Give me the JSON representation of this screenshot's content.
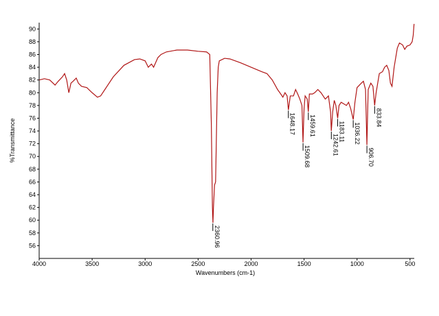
{
  "chart_data": {
    "type": "line",
    "xlabel": "Wavenumbers (cm-1)",
    "ylabel": "%Transmittance",
    "xlim": [
      4000,
      460
    ],
    "ylim": [
      54,
      91
    ],
    "xticks": [
      4000,
      3500,
      3000,
      2500,
      2000,
      1500,
      1000,
      500
    ],
    "yticks": [
      56,
      58,
      60,
      62,
      64,
      66,
      68,
      70,
      72,
      74,
      76,
      78,
      80,
      82,
      84,
      86,
      88,
      90
    ],
    "x": [
      4000,
      3950,
      3900,
      3850,
      3820,
      3780,
      3760,
      3740,
      3720,
      3700,
      3680,
      3650,
      3630,
      3600,
      3550,
      3500,
      3450,
      3420,
      3380,
      3300,
      3200,
      3100,
      3050,
      3000,
      2970,
      2940,
      2920,
      2880,
      2850,
      2800,
      2700,
      2600,
      2500,
      2420,
      2390,
      2375,
      2365,
      2360,
      2355,
      2345,
      2335,
      2320,
      2310,
      2300,
      2250,
      2200,
      2100,
      2000,
      1900,
      1850,
      1800,
      1750,
      1720,
      1700,
      1680,
      1660,
      1648,
      1630,
      1600,
      1580,
      1560,
      1540,
      1520,
      1510,
      1500,
      1490,
      1470,
      1460,
      1450,
      1420,
      1400,
      1370,
      1340,
      1300,
      1270,
      1250,
      1243,
      1230,
      1215,
      1200,
      1183,
      1170,
      1150,
      1100,
      1080,
      1060,
      1036,
      1020,
      1000,
      960,
      940,
      920,
      907,
      895,
      870,
      850,
      834,
      820,
      790,
      760,
      740,
      720,
      700,
      685,
      670,
      650,
      620,
      600,
      570,
      550,
      530,
      500,
      480,
      470,
      462
    ],
    "series": [
      {
        "color": "#b01515",
        "values": [
          82.0,
          82.2,
          82.0,
          81.2,
          81.8,
          82.5,
          83.0,
          82.0,
          80.0,
          81.5,
          81.8,
          82.3,
          81.5,
          81.0,
          80.8,
          80.0,
          79.3,
          79.5,
          80.5,
          82.5,
          84.3,
          85.2,
          85.3,
          85.0,
          84.0,
          84.5,
          84.0,
          85.5,
          86.0,
          86.4,
          86.7,
          86.7,
          86.5,
          86.4,
          86.0,
          75,
          62,
          59.6,
          62,
          65.5,
          66,
          80,
          84,
          85.0,
          85.4,
          85.3,
          84.7,
          84.0,
          83.3,
          83.0,
          82.0,
          80.5,
          79.8,
          79.3,
          80.0,
          79.5,
          77.3,
          79.5,
          79.5,
          80.5,
          79.8,
          79.0,
          78.0,
          72.2,
          77.5,
          79.5,
          79.0,
          77.0,
          79.8,
          79.8,
          80.0,
          80.5,
          80.0,
          79.0,
          79.5,
          77.0,
          74.0,
          77.0,
          78.8,
          78.0,
          76.0,
          78.0,
          78.5,
          78.0,
          78.5,
          77.5,
          75.8,
          78.5,
          80.8,
          81.5,
          81.8,
          80.5,
          71.8,
          80.5,
          81.5,
          81.0,
          78.0,
          80.0,
          83.0,
          83.3,
          84.0,
          84.3,
          83.5,
          81.5,
          81.0,
          84.0,
          87.0,
          87.8,
          87.5,
          86.8,
          87.3,
          87.5,
          88.0,
          89.0,
          90.8
        ]
      }
    ],
    "annotations": [
      {
        "value": 2360.96,
        "label": "2360.96",
        "y": 59.6
      },
      {
        "value": 1648.17,
        "label": "1648.17",
        "y": 77.3
      },
      {
        "value": 1509.68,
        "label": "1509.68",
        "y": 72.2
      },
      {
        "value": 1459.61,
        "label": "1459.61",
        "y": 77.0
      },
      {
        "value": 1242.61,
        "label": "1242.61",
        "y": 74.0
      },
      {
        "value": 1183.11,
        "label": "1183.11",
        "y": 76.0
      },
      {
        "value": 1036.22,
        "label": "1036.22",
        "y": 75.8
      },
      {
        "value": 906.7,
        "label": "906.70",
        "y": 71.8
      },
      {
        "value": 833.84,
        "label": "833.84",
        "y": 78.0
      }
    ]
  }
}
